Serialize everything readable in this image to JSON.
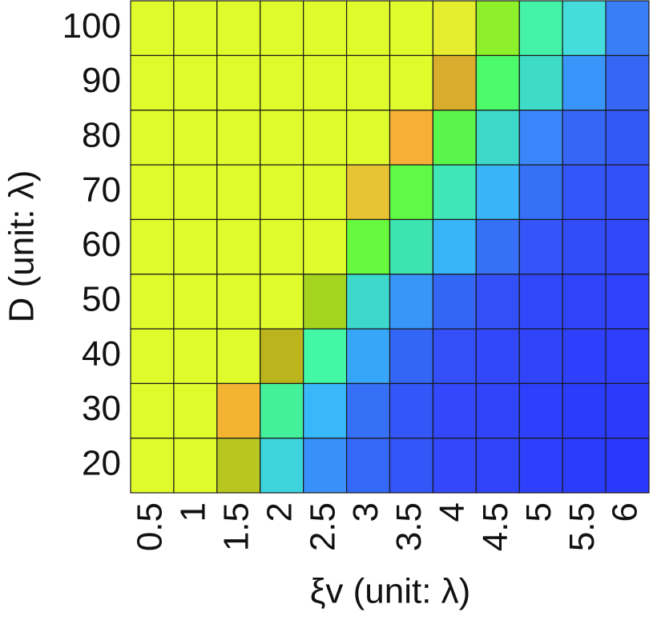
{
  "chart_data": {
    "type": "heatmap",
    "xlabel": "ξv (unit: λ)",
    "ylabel": "D (unit: λ)",
    "x_categories": [
      "0.5",
      "1",
      "1.5",
      "2",
      "2.5",
      "3",
      "3.5",
      "4",
      "4.5",
      "5",
      "5.5",
      "6"
    ],
    "y_categories": [
      "20",
      "30",
      "40",
      "50",
      "60",
      "70",
      "80",
      "90",
      "100"
    ],
    "colors": [
      [
        "#e0fb2b",
        "#e0fb2b",
        "#b8c620",
        "#3ed4dc",
        "#3890f8",
        "#3468f6",
        "#3356f8",
        "#3248fa",
        "#3044fa",
        "#2e40fc",
        "#2c3cfc",
        "#2a38fc"
      ],
      [
        "#e0fb2b",
        "#e0fb2b",
        "#f4b432",
        "#44f09a",
        "#38b8f8",
        "#3670f6",
        "#3356f8",
        "#3248fa",
        "#3044fa",
        "#2e40fc",
        "#2c3cfc",
        "#2c3afc"
      ],
      [
        "#e0fb2b",
        "#e0fb2b",
        "#e0fb2b",
        "#bcb41c",
        "#42f8a4",
        "#38a6f8",
        "#3466f6",
        "#3350f8",
        "#3148fa",
        "#3044fa",
        "#2e40fc",
        "#2e3efc"
      ],
      [
        "#e0fb2b",
        "#e0fb2b",
        "#e0fb2b",
        "#e0fb2b",
        "#a4d41e",
        "#3cd8cc",
        "#3896f8",
        "#3466f6",
        "#3350f8",
        "#3148fa",
        "#3044fa",
        "#2e42fc"
      ],
      [
        "#e0fb2b",
        "#e0fb2b",
        "#e0fb2b",
        "#e0fb2b",
        "#e0fb2b",
        "#66f93e",
        "#3ee4b0",
        "#38b4f8",
        "#3670f6",
        "#3456f8",
        "#324cfa",
        "#3048fa"
      ],
      [
        "#e0fb2b",
        "#e0fb2b",
        "#e0fb2b",
        "#e0fb2b",
        "#e0fb2b",
        "#e8c434",
        "#60fa46",
        "#3ee6b8",
        "#39b4f8",
        "#3670f6",
        "#3356f8",
        "#3250f8"
      ],
      [
        "#e0fb2b",
        "#e0fb2b",
        "#e0fb2b",
        "#e0fb2b",
        "#e0fb2b",
        "#e0fb2b",
        "#f7b035",
        "#5af54a",
        "#3ed8c8",
        "#3a86fa",
        "#3566f6",
        "#3258f6"
      ],
      [
        "#e0fb2b",
        "#e0fb2b",
        "#e0fb2b",
        "#e0fb2b",
        "#e0fb2b",
        "#e0fb2b",
        "#e0fb2b",
        "#d8ac2c",
        "#4dfa6a",
        "#3edcc7",
        "#3a95fa",
        "#3566f4"
      ],
      [
        "#e0fb2b",
        "#e0fb2b",
        "#e0fb2b",
        "#e0fb2b",
        "#e0fb2b",
        "#e0fb2b",
        "#e0fb2b",
        "#e6ec2e",
        "#8df02a",
        "#44f2a8",
        "#45dcdc",
        "#3a7ef6"
      ]
    ]
  }
}
